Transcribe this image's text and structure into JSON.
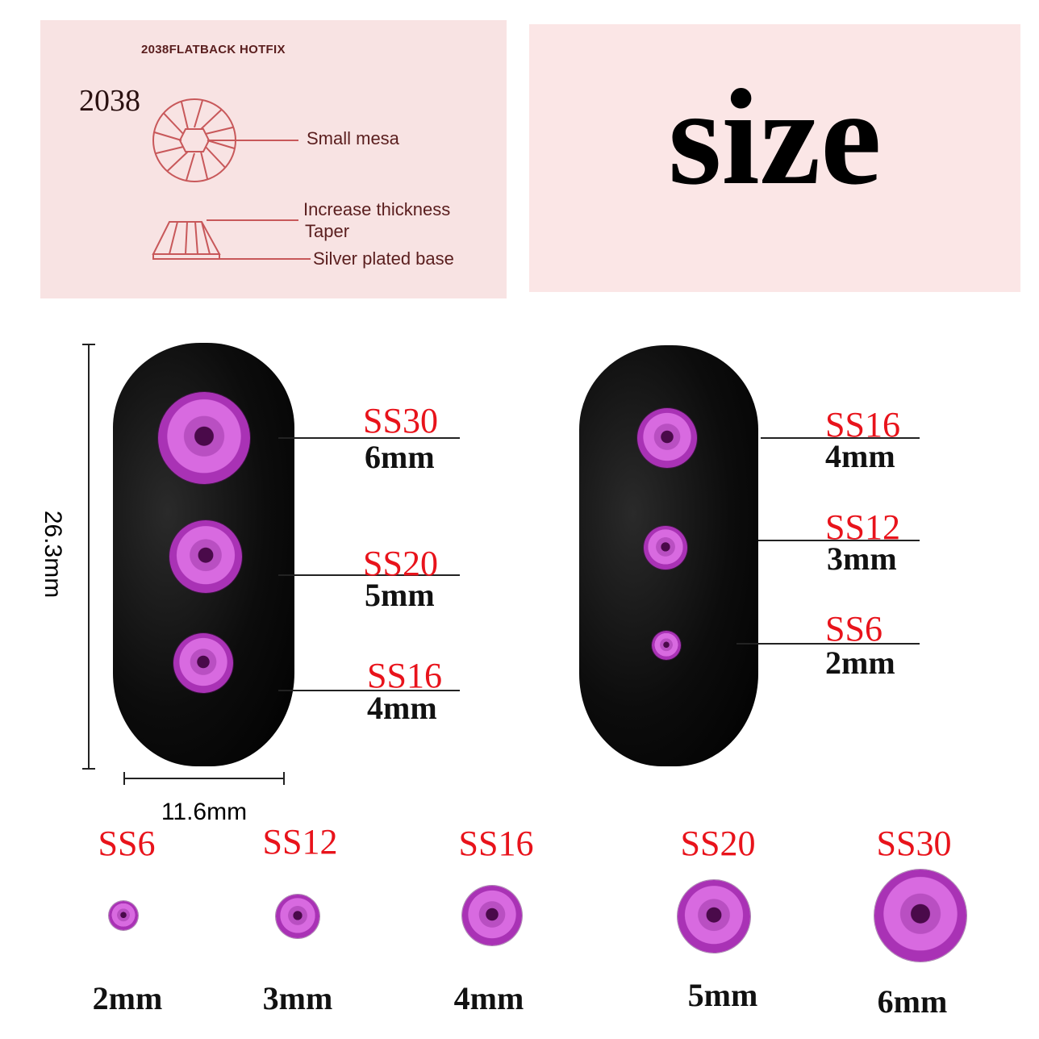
{
  "diagram": {
    "header": "2038FLATBACK HOTFIX",
    "model": "2038",
    "labels": [
      "Small mesa",
      "Increase thickness",
      "Taper",
      "Silver plated base"
    ]
  },
  "title": "size",
  "dimensions": {
    "height": "26.3mm",
    "width": "11.6mm"
  },
  "left_nail": [
    {
      "ss": "SS30",
      "mm": "6mm"
    },
    {
      "ss": "SS20",
      "mm": "5mm"
    },
    {
      "ss": "SS16",
      "mm": "4mm"
    }
  ],
  "right_nail": [
    {
      "ss": "SS16",
      "mm": "4mm"
    },
    {
      "ss": "SS12",
      "mm": "3mm"
    },
    {
      "ss": "SS6",
      "mm": "2mm"
    }
  ],
  "size_row": [
    {
      "ss": "SS6",
      "mm": "2mm"
    },
    {
      "ss": "SS12",
      "mm": "3mm"
    },
    {
      "ss": "SS16",
      "mm": "4mm"
    },
    {
      "ss": "SS20",
      "mm": "5mm"
    },
    {
      "ss": "SS30",
      "mm": "6mm"
    }
  ],
  "colors": {
    "label_red": "#e8131b",
    "gem": "#c04cc8",
    "panel": "#f8e3e3",
    "line": "#c8585a"
  }
}
